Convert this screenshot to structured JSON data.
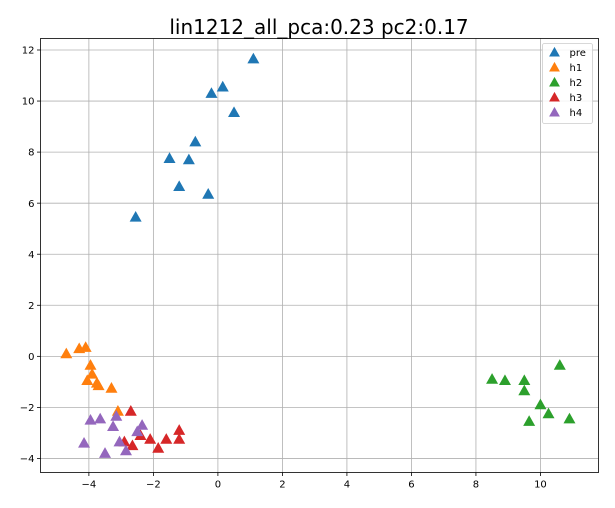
{
  "chart_data": {
    "type": "scatter",
    "title": "lin1212_all_pca:0.23 pc2:0.17",
    "xlabel": "",
    "ylabel": "",
    "xlim": [
      -5.5,
      11.8
    ],
    "ylim": [
      -4.55,
      12.45
    ],
    "xticks": [
      -4,
      -2,
      0,
      2,
      4,
      6,
      8,
      10
    ],
    "yticks": [
      -4,
      -2,
      0,
      2,
      4,
      6,
      8,
      10,
      12
    ],
    "grid": true,
    "legend_position": "top-right",
    "marker": "triangle",
    "series": [
      {
        "name": "pre",
        "color": "#1f77b4",
        "points": [
          [
            1.1,
            11.65
          ],
          [
            0.15,
            10.55
          ],
          [
            -0.2,
            10.3
          ],
          [
            0.5,
            9.55
          ],
          [
            -0.7,
            8.4
          ],
          [
            -1.5,
            7.75
          ],
          [
            -0.9,
            7.7
          ],
          [
            -1.2,
            6.65
          ],
          [
            -0.3,
            6.35
          ],
          [
            -2.55,
            5.45
          ]
        ]
      },
      {
        "name": "h1",
        "color": "#ff7f0e",
        "points": [
          [
            -4.7,
            0.1
          ],
          [
            -4.3,
            0.3
          ],
          [
            -4.1,
            0.35
          ],
          [
            -3.95,
            -0.35
          ],
          [
            -3.9,
            -0.7
          ],
          [
            -4.05,
            -0.95
          ],
          [
            -3.75,
            -1.05
          ],
          [
            -3.7,
            -1.15
          ],
          [
            -3.3,
            -1.25
          ],
          [
            -3.1,
            -2.15
          ]
        ]
      },
      {
        "name": "h2",
        "color": "#2ca02c",
        "points": [
          [
            10.6,
            -0.35
          ],
          [
            8.5,
            -0.9
          ],
          [
            8.9,
            -0.95
          ],
          [
            9.5,
            -0.95
          ],
          [
            9.5,
            -1.35
          ],
          [
            10.0,
            -1.9
          ],
          [
            10.25,
            -2.25
          ],
          [
            10.9,
            -2.45
          ],
          [
            9.65,
            -2.55
          ]
        ]
      },
      {
        "name": "h3",
        "color": "#d62728",
        "points": [
          [
            -2.7,
            -2.15
          ],
          [
            -1.2,
            -2.9
          ],
          [
            -2.4,
            -3.1
          ],
          [
            -2.1,
            -3.25
          ],
          [
            -1.6,
            -3.25
          ],
          [
            -1.2,
            -3.25
          ],
          [
            -2.9,
            -3.35
          ],
          [
            -2.65,
            -3.5
          ],
          [
            -1.85,
            -3.6
          ]
        ]
      },
      {
        "name": "h4",
        "color": "#9467bd",
        "points": [
          [
            -3.15,
            -2.35
          ],
          [
            -3.95,
            -2.5
          ],
          [
            -3.65,
            -2.45
          ],
          [
            -2.35,
            -2.7
          ],
          [
            -3.25,
            -2.75
          ],
          [
            -2.5,
            -2.95
          ],
          [
            -3.05,
            -3.35
          ],
          [
            -4.15,
            -3.4
          ],
          [
            -2.85,
            -3.7
          ],
          [
            -3.5,
            -3.8
          ]
        ]
      }
    ]
  }
}
